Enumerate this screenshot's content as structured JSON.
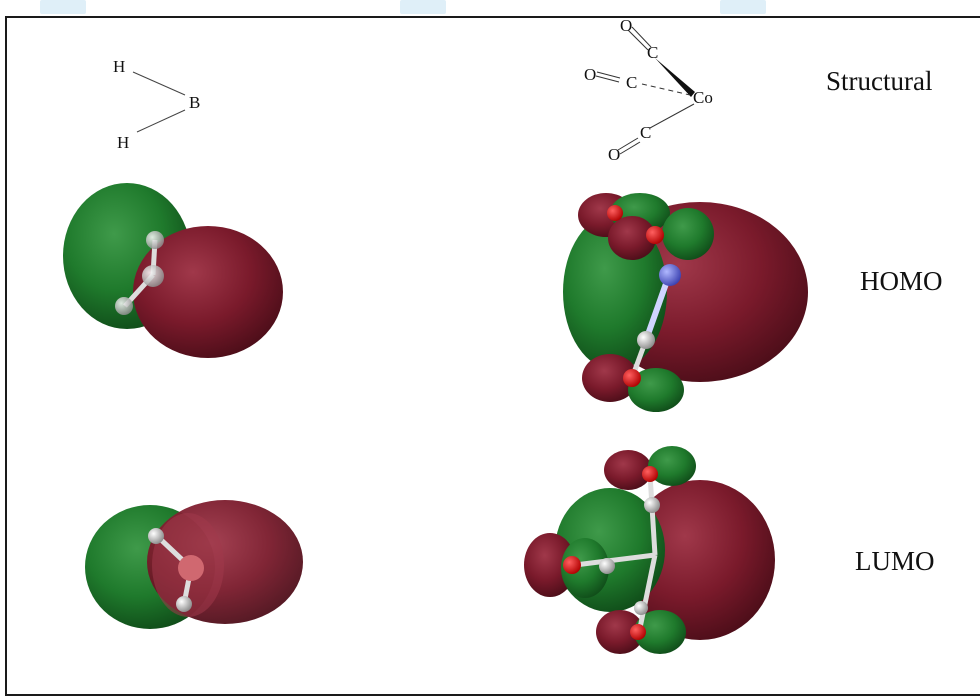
{
  "rows": {
    "structural": "Structural",
    "homo": "HOMO",
    "lumo": "LUMO"
  },
  "bh2_atoms": {
    "h_top": "H",
    "b": "B",
    "h_bottom": "H"
  },
  "co_atoms": {
    "o1": "O",
    "c1": "C",
    "o2": "O",
    "c2": "C",
    "co": "Co",
    "c3": "C",
    "o3": "O"
  },
  "colors": {
    "positive_lobe": "#7a1a2b",
    "negative_lobe": "#1f7a2c",
    "frame": "#1a1a1a"
  }
}
